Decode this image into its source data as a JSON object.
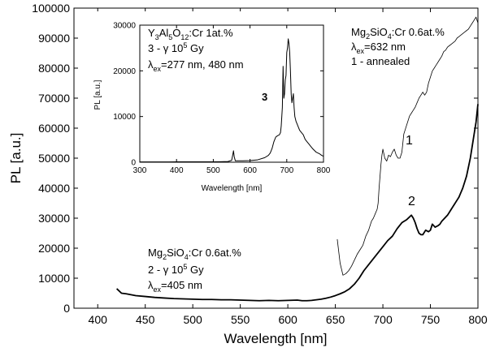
{
  "chart_data": [
    {
      "type": "line",
      "xlabel": "Wavelength [nm]",
      "ylabel": "PL [a.u.]",
      "xlim": [
        375,
        800
      ],
      "ylim": [
        0,
        100000
      ],
      "xticks": [
        "400",
        "450",
        "500",
        "550",
        "600",
        "650",
        "700",
        "750",
        "800"
      ],
      "yticks": [
        "0",
        "10000",
        "20000",
        "30000",
        "40000",
        "50000",
        "60000",
        "70000",
        "80000",
        "90000",
        "100000"
      ],
      "annotations": {
        "a1": {
          "line1": "Mg",
          "line1_sub": "2",
          "line1_rest": "SiO",
          "line1_sub2": "4",
          "line1_end": ":Cr 0.6at.%",
          "line2_pre": "λ",
          "line2_sub": "ex",
          "line2_rest": "=632 nm",
          "line3": "1 - annealed"
        },
        "a2": {
          "line1": "Mg",
          "line1_sub": "2",
          "line1_rest": "SiO",
          "line1_sub2": "4",
          "line1_end": ":Cr 0.6at.%",
          "line2_pre": "2 - γ 10",
          "line2_sup": "5",
          "line2_rest": " Gy",
          "line3_pre": "λ",
          "line3_sub": "ex",
          "line3_rest": "=405 nm"
        },
        "label1": "1",
        "label2": "2"
      },
      "series": [
        {
          "label": "1",
          "color": "#000000",
          "width": 0.8,
          "x": [
            652,
            655,
            658,
            661,
            664,
            667,
            670,
            673,
            676,
            679,
            682,
            685,
            688,
            690,
            692,
            694,
            695,
            696,
            697,
            698,
            699,
            700,
            702,
            704,
            706,
            708,
            710,
            712,
            714,
            716,
            718,
            720,
            722,
            724,
            726,
            728,
            730,
            732,
            734,
            736,
            738,
            740,
            742,
            744,
            746,
            748,
            750,
            752,
            754,
            756,
            758,
            760,
            762,
            764,
            766,
            768,
            770,
            772,
            774,
            776,
            778,
            780,
            782,
            784,
            786,
            788,
            790,
            792,
            794,
            796,
            798,
            800
          ],
          "y": [
            23000,
            15000,
            11000,
            11500,
            12500,
            14000,
            16000,
            18000,
            19500,
            21000,
            24000,
            26000,
            29000,
            30000,
            31500,
            33000,
            35000,
            40000,
            44000,
            48000,
            51000,
            53000,
            50000,
            49000,
            51000,
            50500,
            52000,
            53000,
            51000,
            50000,
            50000,
            52000,
            58000,
            60000,
            62000,
            64000,
            65000,
            66000,
            67000,
            68500,
            70000,
            71000,
            72000,
            71000,
            72000,
            75000,
            77000,
            79000,
            80000,
            81000,
            82000,
            83000,
            84000,
            85500,
            86000,
            87000,
            87500,
            88000,
            88500,
            89000,
            90000,
            90500,
            91000,
            91500,
            92000,
            92500,
            93000,
            94000,
            95000,
            96000,
            97000,
            95000
          ]
        },
        {
          "label": "2",
          "color": "#000000",
          "width": 1.8,
          "x": [
            420,
            425,
            430,
            435,
            440,
            450,
            460,
            470,
            480,
            490,
            500,
            510,
            520,
            530,
            540,
            550,
            560,
            570,
            580,
            590,
            600,
            610,
            615,
            620,
            625,
            630,
            635,
            640,
            645,
            650,
            655,
            660,
            665,
            670,
            675,
            680,
            685,
            690,
            695,
            700,
            705,
            710,
            715,
            720,
            725,
            730,
            732,
            734,
            736,
            738,
            740,
            742,
            745,
            748,
            750,
            752,
            755,
            758,
            760,
            762,
            765,
            768,
            770,
            772,
            775,
            778,
            780,
            782,
            784,
            786,
            788,
            790,
            792,
            794,
            796,
            798,
            800
          ],
          "y": [
            6500,
            5000,
            4800,
            4500,
            4200,
            3900,
            3600,
            3400,
            3200,
            3100,
            3000,
            2900,
            2900,
            2800,
            2800,
            2700,
            2600,
            2500,
            2600,
            2500,
            2600,
            2700,
            2500,
            2500,
            2600,
            2800,
            3000,
            3300,
            3700,
            4200,
            4800,
            5500,
            6500,
            8000,
            10000,
            12500,
            14500,
            16500,
            18500,
            20500,
            22500,
            24000,
            26500,
            28500,
            29500,
            31000,
            30000,
            28500,
            26500,
            25000,
            24500,
            24500,
            26000,
            25500,
            26000,
            28000,
            27000,
            27500,
            28000,
            29000,
            30000,
            31000,
            32000,
            33000,
            34500,
            36000,
            37000,
            38500,
            40000,
            42000,
            44000,
            47000,
            50000,
            54000,
            58000,
            62000,
            68000
          ]
        }
      ]
    },
    {
      "type": "line",
      "xlabel": "Wavelength [nm]",
      "ylabel": "PL [a.u.]",
      "xlim": [
        300,
        800
      ],
      "ylim": [
        0,
        30000
      ],
      "xticks": [
        "300",
        "400",
        "500",
        "600",
        "700",
        "800"
      ],
      "yticks": [
        "0",
        "10000",
        "20000",
        "30000"
      ],
      "annotations": {
        "line1_pre": "Y",
        "line1_s1": "3",
        "line1_m1": "Al",
        "line1_s2": "5",
        "line1_m2": "O",
        "line1_s3": "12",
        "line1_end": ":Cr 1at.%",
        "line2_pre": "3 - γ 10",
        "line2_sup": "5",
        "line2_rest": " Gy",
        "line3_pre": "λ",
        "line3_sub": "ex",
        "line3_rest": "=277 nm, 480 nm",
        "label3": "3"
      },
      "series": [
        {
          "label": "3",
          "color": "#000000",
          "width": 1.0,
          "x": [
            300,
            320,
            340,
            360,
            380,
            400,
            420,
            440,
            460,
            480,
            500,
            520,
            540,
            550,
            553,
            555,
            557,
            560,
            580,
            600,
            620,
            640,
            650,
            655,
            660,
            665,
            670,
            675,
            680,
            683,
            685,
            688,
            690,
            692,
            694,
            696,
            698,
            700,
            702,
            704,
            706,
            708,
            710,
            712,
            714,
            716,
            718,
            720,
            722,
            725,
            730,
            735,
            740,
            745,
            750,
            755,
            760,
            765,
            770,
            775,
            780,
            785,
            790,
            795,
            800
          ],
          "y": [
            60,
            60,
            70,
            70,
            70,
            80,
            80,
            80,
            90,
            90,
            100,
            120,
            150,
            400,
            1600,
            2500,
            1200,
            300,
            300,
            350,
            500,
            1000,
            1500,
            2000,
            3000,
            4500,
            5500,
            5800,
            6000,
            6500,
            8000,
            12000,
            21000,
            14000,
            15000,
            18000,
            19000,
            24000,
            25000,
            27000,
            26000,
            24000,
            20000,
            15000,
            13000,
            14000,
            15000,
            12000,
            10000,
            9000,
            8000,
            7000,
            6500,
            6000,
            5000,
            4500,
            4000,
            3500,
            3000,
            2600,
            2200,
            2000,
            1800,
            1500,
            1300
          ]
        }
      ]
    }
  ]
}
